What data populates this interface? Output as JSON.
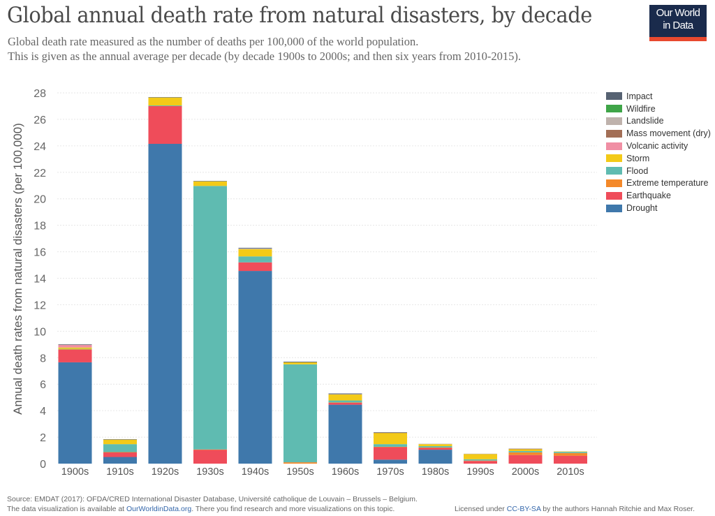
{
  "header": {
    "title": "Global annual death rate from natural disasters, by decade",
    "subtitle_line1": "Global death rate measured as the number of deaths per 100,000 of the world population.",
    "subtitle_line2": "This is given as the annual average per decade (by decade 1900s to 2000s; and then six years from 2010-2015).",
    "logo_line1": "Our World",
    "logo_line2": "in Data"
  },
  "footer": {
    "source": "Source: EMDAT (2017): OFDA/CRED International Disaster Database, Université catholique de Louvain – Brussels – Belgium.",
    "avail_prefix": "The data visualization is available at ",
    "avail_link": "OurWorldinData.org",
    "avail_suffix": ". There you find research and more visualizations on this topic.",
    "license_prefix": "Licensed under ",
    "license_link": "CC-BY-SA",
    "license_suffix": " by the authors Hannah Ritchie and Max Roser."
  },
  "chart_data": {
    "type": "bar",
    "stacked": true,
    "title": "Global annual death rate from natural disasters, by decade",
    "xlabel": "",
    "ylabel": "Annual death rates from natural disasters (per 100,000)",
    "ylim": [
      0,
      28
    ],
    "yticks": [
      0,
      2,
      4,
      6,
      8,
      10,
      12,
      14,
      16,
      18,
      20,
      22,
      24,
      26,
      28
    ],
    "grid": true,
    "legend_position": "top-right",
    "categories": [
      "1900s",
      "1910s",
      "1920s",
      "1930s",
      "1940s",
      "1950s",
      "1960s",
      "1970s",
      "1980s",
      "1990s",
      "2000s",
      "2010s"
    ],
    "series": [
      {
        "name": "Drought",
        "color": "#3f78ab",
        "values": [
          7.65,
          0.5,
          24.15,
          0.0,
          14.55,
          0.0,
          4.45,
          0.3,
          1.05,
          0.0,
          0.0,
          0.0
        ]
      },
      {
        "name": "Earthquake",
        "color": "#ef4c5a",
        "values": [
          0.95,
          0.35,
          2.85,
          1.05,
          0.65,
          0.0,
          0.15,
          0.95,
          0.15,
          0.2,
          0.65,
          0.6
        ]
      },
      {
        "name": "Extreme temperature",
        "color": "#f4892a",
        "values": [
          0.05,
          0.02,
          0.0,
          0.02,
          0.0,
          0.1,
          0.02,
          0.02,
          0.02,
          0.03,
          0.2,
          0.2
        ]
      },
      {
        "name": "Flood",
        "color": "#5fbbb1",
        "values": [
          0.02,
          0.6,
          0.05,
          19.9,
          0.45,
          7.4,
          0.15,
          0.2,
          0.1,
          0.1,
          0.1,
          0.1
        ]
      },
      {
        "name": "Storm",
        "color": "#f3ca18",
        "values": [
          0.1,
          0.35,
          0.6,
          0.35,
          0.55,
          0.15,
          0.45,
          0.85,
          0.15,
          0.4,
          0.15,
          0.02
        ]
      },
      {
        "name": "Volcanic activity",
        "color": "#f08fa4",
        "values": [
          0.2,
          0.0,
          0.0,
          0.0,
          0.0,
          0.0,
          0.0,
          0.0,
          0.0,
          0.0,
          0.0,
          0.0
        ]
      },
      {
        "name": "Mass movement (dry)",
        "color": "#a36f56",
        "values": [
          0.0,
          0.0,
          0.0,
          0.0,
          0.0,
          0.0,
          0.0,
          0.02,
          0.0,
          0.0,
          0.02,
          0.0
        ]
      },
      {
        "name": "Landslide",
        "color": "#bfb2ac",
        "values": [
          0.02,
          0.0,
          0.0,
          0.0,
          0.05,
          0.0,
          0.03,
          0.0,
          0.03,
          0.02,
          0.03,
          0.0
        ]
      },
      {
        "name": "Wildfire",
        "color": "#3fa548",
        "values": [
          0.0,
          0.0,
          0.0,
          0.0,
          0.0,
          0.0,
          0.0,
          0.0,
          0.0,
          0.0,
          0.0,
          0.0
        ]
      },
      {
        "name": "Impact",
        "color": "#566272",
        "values": [
          0.03,
          0.02,
          0.03,
          0.03,
          0.05,
          0.05,
          0.05,
          0.03,
          0.0,
          0.0,
          0.0,
          0.0
        ]
      }
    ],
    "legend_order": [
      "Impact",
      "Wildfire",
      "Landslide",
      "Mass movement (dry)",
      "Volcanic activity",
      "Storm",
      "Flood",
      "Extreme temperature",
      "Earthquake",
      "Drought"
    ]
  }
}
